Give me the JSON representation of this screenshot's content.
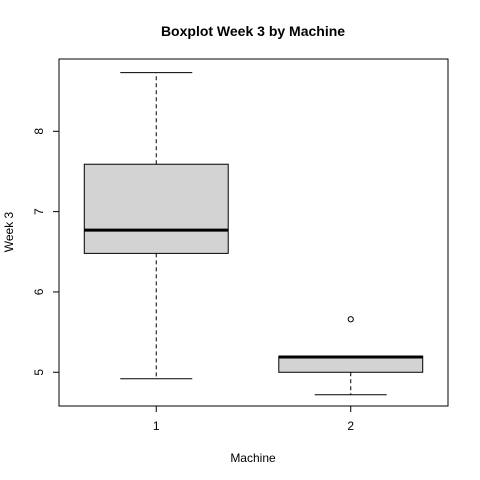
{
  "chart_data": {
    "type": "boxplot",
    "title": "Boxplot Week 3 by Machine",
    "xlabel": "Machine",
    "ylabel": "Week 3",
    "categories": [
      "1",
      "2"
    ],
    "yticks": [
      5,
      6,
      7,
      8
    ],
    "ylim": [
      4.58,
      8.9
    ],
    "boxes": [
      {
        "name": "1",
        "min": 4.92,
        "q1": 6.48,
        "median": 6.77,
        "q3": 7.59,
        "max": 8.73,
        "outliers": []
      },
      {
        "name": "2",
        "min": 4.72,
        "q1": 5.0,
        "median": 5.19,
        "q3": 5.2,
        "max": 5.2,
        "outliers": [
          5.66
        ]
      }
    ],
    "colors": {
      "box_fill": "#d3d3d3",
      "stroke": "#000000"
    }
  }
}
